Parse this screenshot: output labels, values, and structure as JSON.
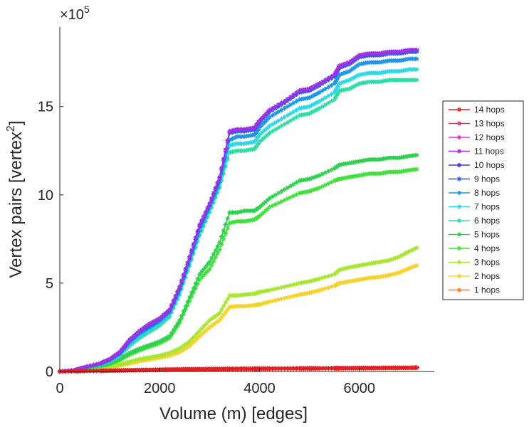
{
  "chart_data": {
    "type": "line",
    "title": "",
    "xlabel": "Volume (m) [edges]",
    "ylabel": "Vertex pairs [vertex",
    "ylabel_superscript": "2",
    "ylabel_close": "]",
    "y_multiplier_base": "×10",
    "y_multiplier_exp": "5",
    "xlim": [
      0,
      7500
    ],
    "ylim": [
      0,
      19.5
    ],
    "x_ticks": [
      0,
      2000,
      4000,
      6000
    ],
    "x_tick_labels": [
      "0",
      "2000",
      "4000",
      "6000"
    ],
    "y_ticks": [
      0,
      5,
      10,
      15
    ],
    "y_tick_labels": [
      "0",
      "5",
      "10",
      "15"
    ],
    "grid": false,
    "legend_position": "right",
    "x": [
      0,
      300,
      500,
      800,
      1000,
      1200,
      1400,
      1600,
      1800,
      2000,
      2200,
      2400,
      2600,
      2800,
      3000,
      3200,
      3400,
      3550,
      3700,
      3900,
      4000,
      4200,
      4500,
      4800,
      5000,
      5200,
      5500,
      5600,
      5800,
      6000,
      6200,
      6400,
      6600,
      6800,
      7000,
      7150
    ],
    "series": [
      {
        "name": "14 hops",
        "color": "#e6201e",
        "values": [
          0,
          0.02,
          0.03,
          0.04,
          0.05,
          0.06,
          0.07,
          0.08,
          0.09,
          0.1,
          0.11,
          0.12,
          0.13,
          0.13,
          0.14,
          0.14,
          0.15,
          0.15,
          0.16,
          0.16,
          0.16,
          0.17,
          0.17,
          0.18,
          0.18,
          0.18,
          0.19,
          0.19,
          0.19,
          0.2,
          0.2,
          0.2,
          0.21,
          0.21,
          0.21,
          0.22
        ]
      },
      {
        "name": "13 hops",
        "color": "#e82c7c",
        "values": [
          0,
          0.02,
          0.03,
          0.04,
          0.05,
          0.06,
          0.07,
          0.08,
          0.09,
          0.1,
          0.11,
          0.12,
          0.13,
          0.13,
          0.14,
          0.14,
          0.15,
          0.15,
          0.16,
          0.16,
          0.16,
          0.17,
          0.17,
          0.18,
          0.18,
          0.18,
          0.19,
          0.19,
          0.19,
          0.2,
          0.2,
          0.2,
          0.21,
          0.21,
          0.21,
          0.22
        ]
      },
      {
        "name": "12 hops",
        "color": "#e030d0",
        "values": [
          0,
          0.02,
          0.03,
          0.04,
          0.05,
          0.06,
          0.07,
          0.08,
          0.09,
          0.1,
          0.11,
          0.12,
          0.13,
          0.13,
          0.14,
          0.14,
          0.15,
          0.15,
          0.16,
          0.16,
          0.16,
          0.17,
          0.17,
          0.18,
          0.18,
          0.18,
          0.19,
          0.19,
          0.19,
          0.2,
          0.2,
          0.2,
          0.21,
          0.21,
          0.21,
          0.22
        ]
      },
      {
        "name": "11 hops",
        "color": "#a032e6",
        "values": [
          0,
          0.08,
          0.25,
          0.45,
          0.7,
          1.1,
          1.8,
          2.3,
          2.7,
          3.0,
          3.5,
          4.8,
          6.5,
          8.3,
          9.5,
          11.0,
          13.6,
          13.7,
          13.7,
          13.8,
          14.2,
          14.8,
          15.3,
          15.9,
          16.0,
          16.3,
          16.8,
          17.3,
          17.5,
          17.9,
          18.0,
          18.0,
          18.1,
          18.1,
          18.2,
          18.2
        ]
      },
      {
        "name": "10 hops",
        "color": "#4b2ed8",
        "values": [
          0,
          0.08,
          0.25,
          0.45,
          0.7,
          1.1,
          1.8,
          2.3,
          2.7,
          3.0,
          3.5,
          4.8,
          6.5,
          8.3,
          9.5,
          11.0,
          13.6,
          13.7,
          13.7,
          13.8,
          14.2,
          14.8,
          15.3,
          15.9,
          16.0,
          16.3,
          16.8,
          17.3,
          17.5,
          17.9,
          18.0,
          18.0,
          18.1,
          18.1,
          18.2,
          18.2
        ]
      },
      {
        "name": "9 hops",
        "color": "#2a5ee6",
        "values": [
          0,
          0.08,
          0.24,
          0.44,
          0.68,
          1.05,
          1.75,
          2.25,
          2.6,
          2.95,
          3.45,
          4.7,
          6.4,
          8.2,
          9.4,
          10.9,
          13.5,
          13.6,
          13.6,
          13.7,
          14.1,
          14.7,
          15.2,
          15.8,
          15.9,
          16.2,
          16.7,
          17.2,
          17.4,
          17.8,
          17.9,
          17.9,
          18.0,
          18.0,
          18.1,
          18.1
        ]
      },
      {
        "name": "8 hops",
        "color": "#1e96e6",
        "values": [
          0,
          0.08,
          0.23,
          0.42,
          0.65,
          1.0,
          1.65,
          2.15,
          2.5,
          2.85,
          3.35,
          4.6,
          6.3,
          8.0,
          9.3,
          10.7,
          13.1,
          13.3,
          13.3,
          13.4,
          13.8,
          14.4,
          14.9,
          15.4,
          15.5,
          15.8,
          16.3,
          16.8,
          17.0,
          17.4,
          17.5,
          17.5,
          17.6,
          17.6,
          17.7,
          17.7
        ]
      },
      {
        "name": "7 hops",
        "color": "#2fd8e6",
        "values": [
          0,
          0.07,
          0.22,
          0.4,
          0.62,
          0.95,
          1.55,
          2.05,
          2.4,
          2.75,
          3.25,
          4.5,
          6.2,
          7.9,
          9.2,
          10.6,
          12.8,
          12.9,
          12.9,
          13.0,
          13.4,
          13.9,
          14.4,
          14.9,
          15.0,
          15.3,
          15.8,
          16.3,
          16.5,
          16.8,
          16.9,
          16.9,
          17.0,
          17.0,
          17.1,
          17.1
        ]
      },
      {
        "name": "6 hops",
        "color": "#2fdca8",
        "values": [
          0,
          0.07,
          0.21,
          0.38,
          0.58,
          0.9,
          1.45,
          1.9,
          2.25,
          2.6,
          3.1,
          4.35,
          6.0,
          7.7,
          9.0,
          10.4,
          12.4,
          12.5,
          12.5,
          12.6,
          13.0,
          13.5,
          14.0,
          14.5,
          14.6,
          14.9,
          15.4,
          15.9,
          16.0,
          16.3,
          16.4,
          16.4,
          16.5,
          16.5,
          16.5,
          16.5
        ]
      },
      {
        "name": "5 hops",
        "color": "#2fd050",
        "values": [
          0,
          0.06,
          0.18,
          0.32,
          0.45,
          0.7,
          1.05,
          1.3,
          1.5,
          1.7,
          2.0,
          2.9,
          4.2,
          5.5,
          6.2,
          7.3,
          9.0,
          9.0,
          9.1,
          9.1,
          9.3,
          9.8,
          10.3,
          10.8,
          10.9,
          11.1,
          11.5,
          11.7,
          11.8,
          11.9,
          12.0,
          12.0,
          12.1,
          12.1,
          12.2,
          12.25
        ]
      },
      {
        "name": "4 hops",
        "color": "#42e03a",
        "values": [
          0,
          0.06,
          0.17,
          0.3,
          0.42,
          0.65,
          0.95,
          1.2,
          1.4,
          1.6,
          1.9,
          2.75,
          4.0,
          5.2,
          5.8,
          6.9,
          8.4,
          8.5,
          8.5,
          8.6,
          8.8,
          9.3,
          9.7,
          10.1,
          10.2,
          10.4,
          10.8,
          10.9,
          11.0,
          11.1,
          11.2,
          11.2,
          11.3,
          11.3,
          11.4,
          11.45
        ]
      },
      {
        "name": "3 hops",
        "color": "#a8e632",
        "values": [
          0,
          0.05,
          0.12,
          0.22,
          0.3,
          0.4,
          0.55,
          0.7,
          0.8,
          0.9,
          1.05,
          1.3,
          1.7,
          2.3,
          2.9,
          3.3,
          4.3,
          4.3,
          4.35,
          4.4,
          4.5,
          4.6,
          4.8,
          5.0,
          5.1,
          5.25,
          5.5,
          5.75,
          5.9,
          6.0,
          6.1,
          6.2,
          6.3,
          6.5,
          6.8,
          7.0
        ]
      },
      {
        "name": "2 hops",
        "color": "#f6d22c",
        "values": [
          0,
          0.04,
          0.1,
          0.18,
          0.25,
          0.33,
          0.45,
          0.58,
          0.68,
          0.78,
          0.9,
          1.1,
          1.45,
          2.0,
          2.5,
          2.9,
          3.65,
          3.7,
          3.7,
          3.75,
          3.8,
          3.95,
          4.15,
          4.35,
          4.45,
          4.6,
          4.85,
          5.0,
          5.1,
          5.2,
          5.3,
          5.35,
          5.45,
          5.6,
          5.85,
          6.0
        ]
      },
      {
        "name": "1 hops",
        "color": "#f57e1f",
        "values": [
          0,
          0.01,
          0.02,
          0.03,
          0.04,
          0.05,
          0.06,
          0.07,
          0.08,
          0.09,
          0.1,
          0.11,
          0.12,
          0.12,
          0.13,
          0.13,
          0.14,
          0.14,
          0.14,
          0.15,
          0.15,
          0.15,
          0.16,
          0.16,
          0.16,
          0.17,
          0.17,
          0.17,
          0.18,
          0.18,
          0.18,
          0.19,
          0.19,
          0.19,
          0.2,
          0.2
        ]
      }
    ]
  }
}
